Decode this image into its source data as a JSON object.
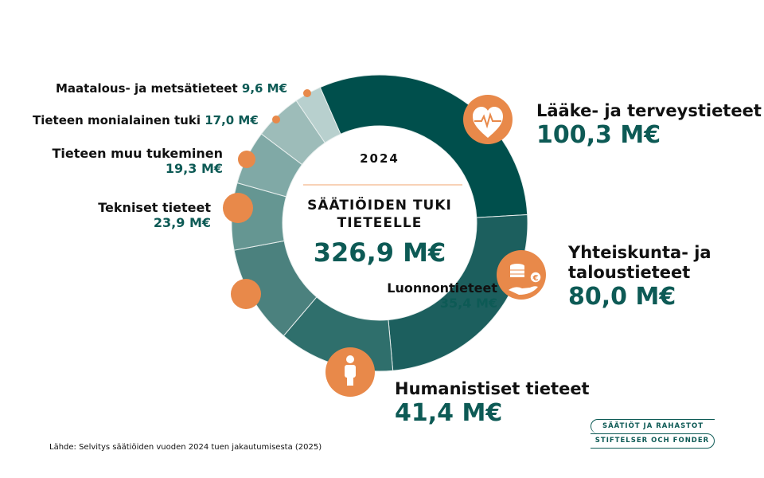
{
  "chart_data": {
    "type": "pie",
    "donut": true,
    "year": "2024",
    "title": "SÄÄTIÖIDEN TUKI TIETEELLE",
    "total_label": "326,9 M€",
    "unit": "M€",
    "categories": [
      "Lääke- ja terveystieteet",
      "Yhteiskunta- ja taloustieteet",
      "Humanistiset tieteet",
      "Luonnontieteet",
      "Tekniset tieteet",
      "Tieteen muu tukeminen",
      "Tieteen monialainen tuki",
      "Maatalous- ja metsätieteet"
    ],
    "values": [
      100.3,
      80.0,
      41.4,
      35.4,
      23.9,
      19.3,
      17.0,
      9.6
    ],
    "value_labels": [
      "100,3 M€",
      "80,0 M€",
      "41,4 M€",
      "35,4 M€",
      "23,9 M€",
      "19,3 M€",
      "17,0 M€",
      "9,6 M€"
    ],
    "colors": [
      "#004f4c",
      "#1c5f5e",
      "#2f6f6c",
      "#4b817e",
      "#659692",
      "#80a9a6",
      "#9dbcb9",
      "#b8d0ce"
    ],
    "icons": [
      "heart-pulse-icon",
      "coins-hand-icon",
      "person-icon"
    ]
  },
  "colors": {
    "accent": "#e8894a",
    "teal": "#0d5a55"
  },
  "source": "Lähde: Selvitys säätiöiden vuoden 2024 tuen jakautumisesta (2025)",
  "logo": {
    "line1": "SÄÄTIÖT JA RAHASTOT",
    "line2": "STIFTELSER OCH FONDER"
  }
}
